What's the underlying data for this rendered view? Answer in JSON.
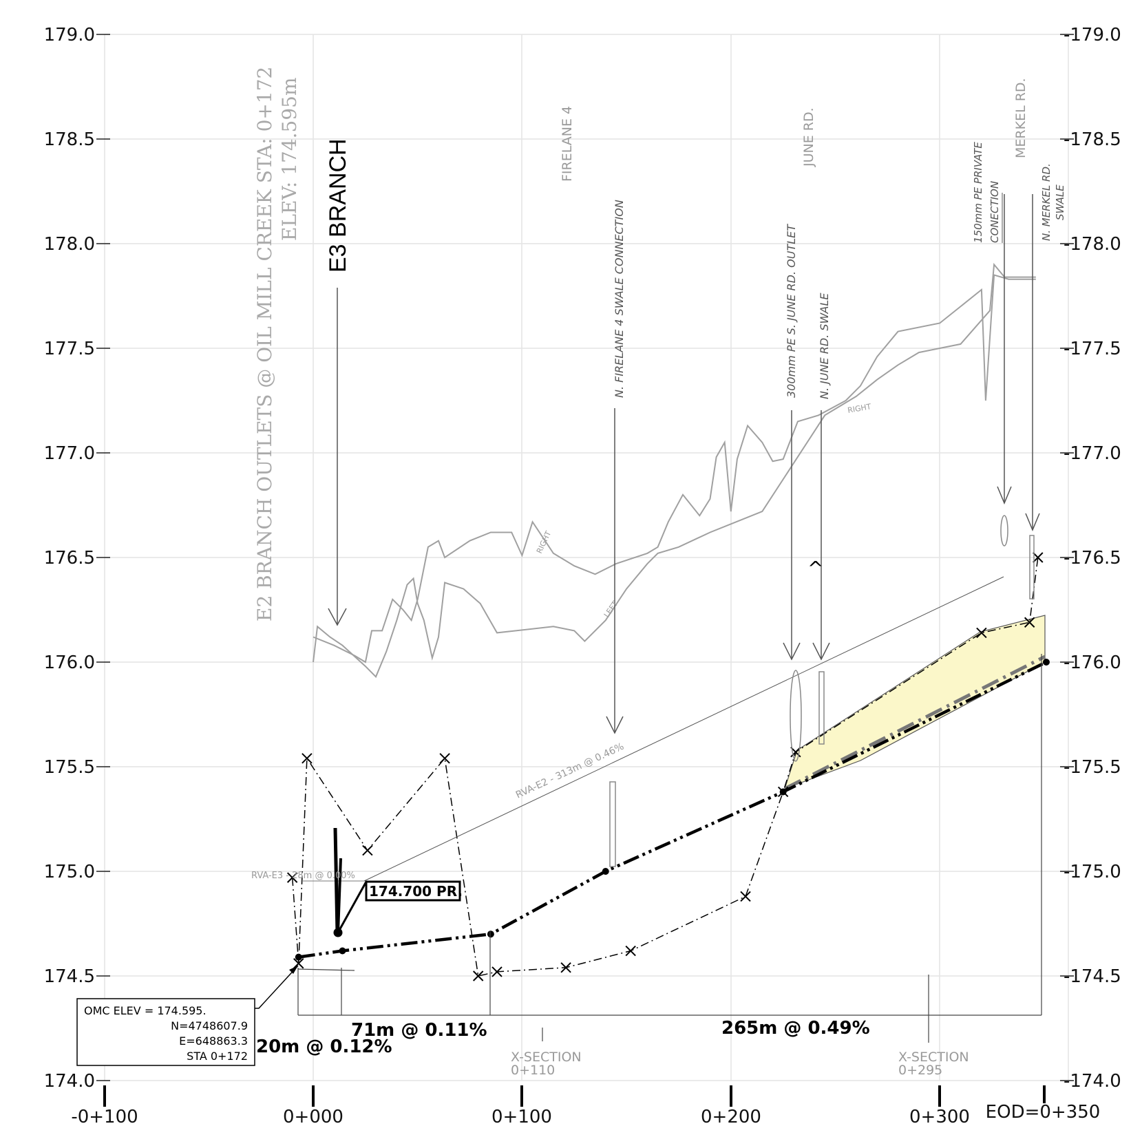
{
  "axes": {
    "y_ticks_left": [
      "179.0",
      "178.5",
      "178.0",
      "177.5",
      "177.0",
      "176.5",
      "176.0",
      "175.5",
      "175.0",
      "174.5",
      "174.0"
    ],
    "y_ticks_right": [
      "-179.0",
      "-178.5",
      "-178.0",
      "-177.5",
      "-177.0",
      "-176.5",
      "-176.0",
      "-175.5",
      "-175.0",
      "-174.5",
      "-174.0"
    ],
    "x_ticks": [
      "-0+100",
      "0+000",
      "0+100",
      "0+200",
      "0+300",
      "EOD=0+350"
    ]
  },
  "labels": {
    "e2_outlets": "E2 BRANCH OUTLETS @ OIL MILL CREEK STA: 0+172",
    "e2_elev": "ELEV: 174.595m",
    "e3_branch": "E3 BRANCH",
    "firelane": "FIRELANE  4",
    "firelane_swale": "N. FIRELANE  4  SWALE  CONNECTION",
    "june_rd": "JUNE  RD.",
    "june_outlet": "300mm  PE  S.  JUNE  RD.  OUTLET",
    "june_swale": "N.  JUNE  RD.  SWALE",
    "private_1": "150mm  PE  PRIVATE",
    "private_2": "CONECTION",
    "merkel_rd": "MERKEL  RD.",
    "merkel_swale_1": "N.  MERKEL  RD.",
    "merkel_swale_2": "SWALE",
    "right_1": "RIGHT",
    "right_2": "RIGHT",
    "left": "LEFT",
    "rva_e2": "RVA-E2  -  313m  @  0.46%",
    "rva_e3": "RVA-E3  -  28m  @  0.00%",
    "pr_label": "174.700  PR.",
    "caret": "^",
    "omc_elev": "OMC  ELEV  =  174.595.",
    "omc_n": "N=4748607.9",
    "omc_e": "E=648863.3",
    "omc_sta": "STA  0+172",
    "xsec_1_title": "X-SECTION",
    "xsec_1_sta": "0+110",
    "xsec_2_title": "X-SECTION",
    "xsec_2_sta": "0+295",
    "seg_20m": "20m  @  0.12%",
    "seg_71m": "71m  @  0.11%",
    "seg_265m": "265m  @  0.49%"
  },
  "profiles": {
    "proposed_invert": [
      [
        -7,
        174.59
      ],
      [
        14,
        174.62
      ],
      [
        85,
        174.7
      ],
      [
        140,
        175.0
      ],
      [
        225,
        175.38
      ],
      [
        351,
        176.0
      ]
    ],
    "ditch_x": [
      [
        -10,
        174.97
      ],
      [
        -7,
        174.56
      ],
      [
        -3,
        175.54
      ],
      [
        26,
        175.1
      ],
      [
        63,
        175.54
      ],
      [
        79,
        174.5
      ],
      [
        88,
        174.52
      ],
      [
        121,
        174.54
      ],
      [
        152,
        174.62
      ],
      [
        207,
        174.88
      ],
      [
        225,
        175.38
      ],
      [
        231,
        175.57
      ],
      [
        320,
        176.14
      ],
      [
        343,
        176.19
      ],
      [
        347,
        176.5
      ]
    ],
    "ground_left": [
      [
        0,
        176.0
      ],
      [
        2,
        176.17
      ],
      [
        8,
        176.12
      ],
      [
        14,
        176.08
      ],
      [
        25,
        175.98
      ],
      [
        30,
        175.93
      ],
      [
        35,
        176.05
      ],
      [
        40,
        176.2
      ],
      [
        45,
        176.37
      ],
      [
        48,
        176.4
      ],
      [
        50,
        176.28
      ],
      [
        53,
        176.2
      ],
      [
        57,
        176.02
      ],
      [
        60,
        176.12
      ],
      [
        63,
        176.38
      ],
      [
        72,
        176.35
      ],
      [
        80,
        176.28
      ],
      [
        88,
        176.14
      ],
      [
        115,
        176.17
      ],
      [
        125,
        176.15
      ],
      [
        130,
        176.1
      ],
      [
        140,
        176.2
      ],
      [
        150,
        176.35
      ],
      [
        160,
        176.47
      ],
      [
        165,
        176.52
      ],
      [
        175,
        176.55
      ],
      [
        190,
        176.62
      ],
      [
        215,
        176.72
      ],
      [
        230,
        176.95
      ],
      [
        245,
        177.18
      ],
      [
        260,
        177.27
      ],
      [
        270,
        177.35
      ],
      [
        280,
        177.42
      ],
      [
        290,
        177.48
      ],
      [
        310,
        177.52
      ],
      [
        324,
        177.68
      ],
      [
        326,
        177.9
      ],
      [
        331,
        177.84
      ],
      [
        346,
        177.84
      ]
    ],
    "ground_right": [
      [
        0,
        176.12
      ],
      [
        10,
        176.08
      ],
      [
        20,
        176.03
      ],
      [
        25,
        176.0
      ],
      [
        28,
        176.15
      ],
      [
        33,
        176.15
      ],
      [
        38,
        176.3
      ],
      [
        43,
        176.25
      ],
      [
        47,
        176.2
      ],
      [
        50,
        176.3
      ],
      [
        55,
        176.55
      ],
      [
        60,
        176.58
      ],
      [
        63,
        176.5
      ],
      [
        75,
        176.58
      ],
      [
        85,
        176.62
      ],
      [
        95,
        176.62
      ],
      [
        100,
        176.51
      ],
      [
        105,
        176.67
      ],
      [
        115,
        176.52
      ],
      [
        125,
        176.46
      ],
      [
        135,
        176.42
      ],
      [
        145,
        176.47
      ],
      [
        160,
        176.52
      ],
      [
        165,
        176.55
      ],
      [
        170,
        176.67
      ],
      [
        177,
        176.8
      ],
      [
        185,
        176.7
      ],
      [
        190,
        176.78
      ],
      [
        193,
        176.98
      ],
      [
        197,
        177.05
      ],
      [
        200,
        176.72
      ],
      [
        203,
        176.97
      ],
      [
        208,
        177.13
      ],
      [
        215,
        177.05
      ],
      [
        220,
        176.96
      ],
      [
        225,
        176.97
      ],
      [
        232,
        177.15
      ],
      [
        242,
        177.18
      ],
      [
        255,
        177.25
      ],
      [
        262,
        177.32
      ],
      [
        270,
        177.46
      ],
      [
        280,
        177.58
      ],
      [
        300,
        177.62
      ],
      [
        320,
        177.78
      ],
      [
        322,
        177.25
      ],
      [
        326,
        177.85
      ],
      [
        333,
        177.83
      ],
      [
        346,
        177.83
      ]
    ]
  }
}
